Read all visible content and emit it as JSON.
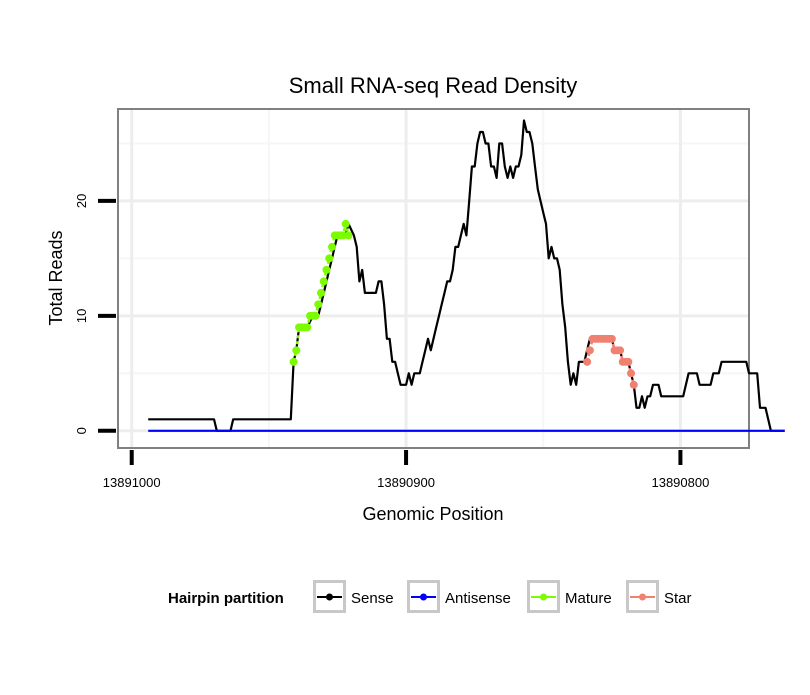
{
  "chart_data": {
    "type": "line",
    "title": "Small RNA-seq Read Density",
    "xlabel": "Genomic Position",
    "ylabel": "Total Reads",
    "x_reversed": true,
    "xlim": [
      13891005,
      13890775
    ],
    "ylim": [
      -1.5,
      28
    ],
    "x_ticks": [
      13891000,
      13890900,
      13890800
    ],
    "x_tick_labels": [
      "13891000",
      "13890900",
      "13890800"
    ],
    "y_ticks": [
      0,
      10,
      20
    ],
    "y_tick_labels": [
      "0",
      "10",
      "20"
    ],
    "grid": true,
    "legend": {
      "title": "Hairpin partition",
      "position": "bottom",
      "entries": [
        {
          "label": "Sense",
          "color": "#000000"
        },
        {
          "label": "Antisense",
          "color": "#0000ff"
        },
        {
          "label": "Mature",
          "color": "#7cfc00"
        },
        {
          "label": "Star",
          "color": "#f08070"
        }
      ]
    },
    "series": [
      {
        "name": "Sense",
        "color": "#000000",
        "points": [
          [
            13890994,
            1
          ],
          [
            13890970,
            1
          ],
          [
            13890969,
            0
          ],
          [
            13890964,
            0
          ],
          [
            13890963,
            1
          ],
          [
            13890942,
            1
          ],
          [
            13890941,
            6
          ],
          [
            13890940,
            7
          ],
          [
            13890939,
            9
          ],
          [
            13890936,
            9
          ],
          [
            13890934,
            10
          ],
          [
            13890932,
            10
          ],
          [
            13890931,
            11
          ],
          [
            13890930,
            12
          ],
          [
            13890929,
            13
          ],
          [
            13890928,
            14
          ],
          [
            13890927,
            15
          ],
          [
            13890926,
            16
          ],
          [
            13890925,
            17
          ],
          [
            13890922,
            17
          ],
          [
            13890921,
            18
          ],
          [
            13890919,
            17
          ],
          [
            13890918,
            16
          ],
          [
            13890917,
            13
          ],
          [
            13890916,
            14
          ],
          [
            13890915,
            12
          ],
          [
            13890911,
            12
          ],
          [
            13890910,
            13
          ],
          [
            13890909,
            13
          ],
          [
            13890908,
            11
          ],
          [
            13890907,
            8
          ],
          [
            13890906,
            8
          ],
          [
            13890905,
            6
          ],
          [
            13890904,
            6
          ],
          [
            13890903,
            5
          ],
          [
            13890902,
            4
          ],
          [
            13890900,
            4
          ],
          [
            13890899,
            5
          ],
          [
            13890898,
            4
          ],
          [
            13890897,
            5
          ],
          [
            13890895,
            5
          ],
          [
            13890894,
            6
          ],
          [
            13890893,
            7
          ],
          [
            13890892,
            8
          ],
          [
            13890891,
            7
          ],
          [
            13890890,
            8
          ],
          [
            13890889,
            9
          ],
          [
            13890888,
            10
          ],
          [
            13890887,
            11
          ],
          [
            13890886,
            12
          ],
          [
            13890885,
            13
          ],
          [
            13890884,
            13
          ],
          [
            13890883,
            14
          ],
          [
            13890882,
            16
          ],
          [
            13890881,
            16
          ],
          [
            13890880,
            17
          ],
          [
            13890879,
            18
          ],
          [
            13890878,
            17
          ],
          [
            13890877,
            20
          ],
          [
            13890876,
            23
          ],
          [
            13890875,
            23
          ],
          [
            13890874,
            25
          ],
          [
            13890873,
            26
          ],
          [
            13890872,
            26
          ],
          [
            13890871,
            25
          ],
          [
            13890870,
            25
          ],
          [
            13890869,
            23
          ],
          [
            13890868,
            23
          ],
          [
            13890867,
            22
          ],
          [
            13890866,
            25
          ],
          [
            13890865,
            25
          ],
          [
            13890864,
            23
          ],
          [
            13890863,
            22
          ],
          [
            13890862,
            23
          ],
          [
            13890861,
            22
          ],
          [
            13890860,
            23
          ],
          [
            13890859,
            23
          ],
          [
            13890858,
            24
          ],
          [
            13890857,
            27
          ],
          [
            13890856,
            26
          ],
          [
            13890855,
            26
          ],
          [
            13890854,
            25
          ],
          [
            13890853,
            23
          ],
          [
            13890852,
            21
          ],
          [
            13890851,
            20
          ],
          [
            13890850,
            19
          ],
          [
            13890849,
            18
          ],
          [
            13890848,
            15
          ],
          [
            13890847,
            16
          ],
          [
            13890846,
            15
          ],
          [
            13890845,
            15
          ],
          [
            13890844,
            14
          ],
          [
            13890843,
            11
          ],
          [
            13890842,
            9
          ],
          [
            13890841,
            6
          ],
          [
            13890840,
            4
          ],
          [
            13890839,
            5
          ],
          [
            13890838,
            4
          ],
          [
            13890837,
            6
          ],
          [
            13890836,
            6
          ],
          [
            13890835,
            6
          ],
          [
            13890834,
            7
          ],
          [
            13890833,
            8
          ],
          [
            13890825,
            8
          ],
          [
            13890824,
            7
          ],
          [
            13890822,
            7
          ],
          [
            13890821,
            6
          ],
          [
            13890819,
            6
          ],
          [
            13890818,
            5
          ],
          [
            13890817,
            4
          ],
          [
            13890816,
            2
          ],
          [
            13890815,
            2
          ],
          [
            13890814,
            3
          ],
          [
            13890813,
            2
          ],
          [
            13890812,
            3
          ],
          [
            13890811,
            3
          ],
          [
            13890810,
            4
          ],
          [
            13890808,
            4
          ],
          [
            13890807,
            3
          ],
          [
            13890799,
            3
          ],
          [
            13890798,
            4
          ],
          [
            13890797,
            5
          ],
          [
            13890794,
            5
          ],
          [
            13890793,
            4
          ],
          [
            13890789,
            4
          ],
          [
            13890788,
            5
          ],
          [
            13890786,
            5
          ],
          [
            13890785,
            6
          ],
          [
            13890776,
            6
          ],
          [
            13890775,
            5
          ],
          [
            13890772,
            5
          ],
          [
            13890771,
            2
          ],
          [
            13890769,
            2
          ],
          [
            13890768,
            1
          ],
          [
            13890767,
            0
          ],
          [
            13890762,
            0
          ]
        ]
      },
      {
        "name": "Antisense",
        "color": "#0000ff",
        "points": [
          [
            13890994,
            0
          ],
          [
            13890762,
            0
          ]
        ]
      },
      {
        "name": "Mature",
        "color": "#7cfc00",
        "points": [
          [
            13890941,
            6
          ],
          [
            13890940,
            7
          ],
          [
            13890939,
            9
          ],
          [
            13890938,
            9
          ],
          [
            13890937,
            9
          ],
          [
            13890936,
            9
          ],
          [
            13890935,
            10
          ],
          [
            13890934,
            10
          ],
          [
            13890933,
            10
          ],
          [
            13890932,
            11
          ],
          [
            13890931,
            12
          ],
          [
            13890930,
            13
          ],
          [
            13890929,
            14
          ],
          [
            13890928,
            15
          ],
          [
            13890927,
            16
          ],
          [
            13890926,
            17
          ],
          [
            13890925,
            17
          ],
          [
            13890924,
            17
          ],
          [
            13890923,
            17
          ],
          [
            13890922,
            18
          ],
          [
            13890921,
            17
          ]
        ]
      },
      {
        "name": "Star",
        "color": "#f08070",
        "points": [
          [
            13890834,
            6
          ],
          [
            13890833,
            7
          ],
          [
            13890832,
            8
          ],
          [
            13890831,
            8
          ],
          [
            13890830,
            8
          ],
          [
            13890829,
            8
          ],
          [
            13890828,
            8
          ],
          [
            13890827,
            8
          ],
          [
            13890826,
            8
          ],
          [
            13890825,
            8
          ],
          [
            13890824,
            7
          ],
          [
            13890823,
            7
          ],
          [
            13890822,
            7
          ],
          [
            13890821,
            6
          ],
          [
            13890820,
            6
          ],
          [
            13890819,
            6
          ],
          [
            13890818,
            5
          ],
          [
            13890817,
            4
          ]
        ]
      }
    ]
  }
}
